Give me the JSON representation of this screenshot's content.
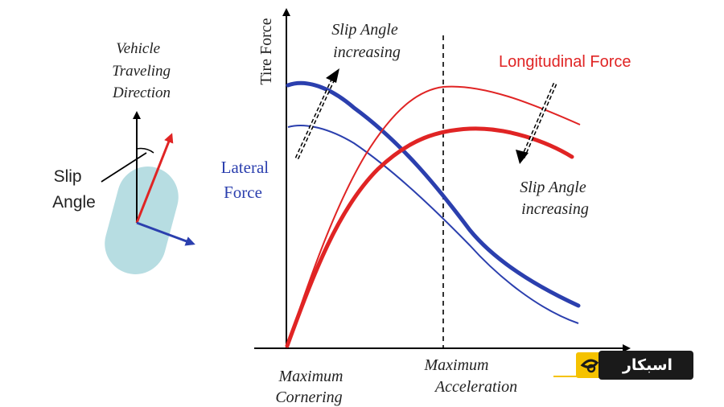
{
  "labels": {
    "vehicle_direction": [
      "Vehicle",
      "Traveling",
      "Direction"
    ],
    "slip_angle": [
      "Slip",
      "Angle"
    ],
    "y_axis": "Tire Force",
    "slip_increasing_top": [
      "Slip Angle",
      "increasing"
    ],
    "slip_increasing_right": [
      "Slip Angle",
      "increasing"
    ],
    "longitudinal_force": "Longitudinal Force",
    "lateral_force": [
      "Lateral",
      "Force"
    ],
    "x_max_cornering": [
      "Maximum",
      "Cornering"
    ],
    "x_max_acceleration": [
      "Maximum",
      "Acceleration"
    ]
  },
  "logo": {
    "text": "اسبکار"
  },
  "colors": {
    "lateral": "#2b3fae",
    "longitudinal": "#e02424",
    "axis": "#000000",
    "vehicle_body": "#b7dde2",
    "logo_bg": "#1a1a1a",
    "logo_accent": "#f5c200"
  },
  "icons": [
    "vehicle-body-icon",
    "dashed-arrow-icon",
    "logo-icon"
  ]
}
